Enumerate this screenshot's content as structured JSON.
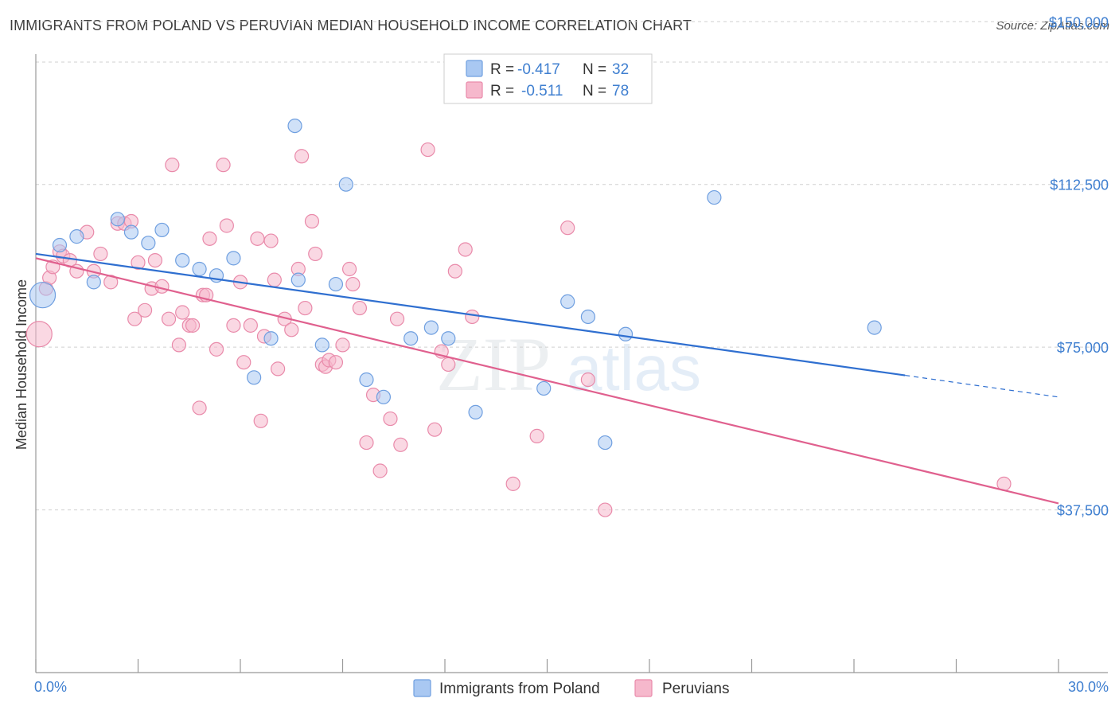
{
  "title": "IMMIGRANTS FROM POLAND VS PERUVIAN MEDIAN HOUSEHOLD INCOME CORRELATION CHART",
  "source": "Source: ZipAtlas.com",
  "watermark": {
    "zip": "ZIP",
    "atlas": "atlas"
  },
  "colors": {
    "blue_fill": "#a9c8f2",
    "blue_stroke": "#6f9fe0",
    "blue_line": "#2f6fd0",
    "pink_fill": "#f6b8cc",
    "pink_stroke": "#e98aaa",
    "pink_line": "#e0608e",
    "tick_text": "#3f7fd0",
    "grid": "#d0d0d0"
  },
  "legend": {
    "rows": [
      {
        "r_label": "R = ",
        "r_value": "-0.417",
        "n_label": "N = ",
        "n_value": "32"
      },
      {
        "r_label": "R = ",
        "r_value": "-0.511",
        "n_label": "N = ",
        "n_value": "78"
      }
    ]
  },
  "chart_data": {
    "type": "scatter",
    "title": "IMMIGRANTS FROM POLAND VS PERUVIAN MEDIAN HOUSEHOLD INCOME CORRELATION CHART",
    "xlabel": "",
    "ylabel": "Median Household Income",
    "xlim": [
      0,
      30
    ],
    "ylim": [
      0,
      155000
    ],
    "x_tick_labels": [
      "0.0%",
      "30.0%"
    ],
    "y_ticks": [
      37500,
      75000,
      112500,
      150000
    ],
    "y_tick_labels": [
      "$37,500",
      "$75,000",
      "$112,500",
      "$150,000"
    ],
    "grid": "horizontal dashed",
    "legend_position": "top-center",
    "series": [
      {
        "name": "Immigrants from Poland",
        "color": "#a9c8f2",
        "trend": {
          "x": [
            0,
            25.5
          ],
          "y": [
            96500,
            68500
          ],
          "dashed_to_x": 30,
          "dashed_to_y": 63500
        },
        "points": [
          [
            0.2,
            87000,
            "large"
          ],
          [
            0.7,
            98500
          ],
          [
            1.2,
            100500
          ],
          [
            1.7,
            90000
          ],
          [
            2.4,
            104500
          ],
          [
            2.8,
            101500
          ],
          [
            3.3,
            99000
          ],
          [
            3.7,
            102000
          ],
          [
            4.3,
            95000
          ],
          [
            4.8,
            93000
          ],
          [
            5.3,
            91500
          ],
          [
            5.8,
            95500
          ],
          [
            6.4,
            68000
          ],
          [
            6.9,
            77000
          ],
          [
            7.6,
            126000
          ],
          [
            7.7,
            90500
          ],
          [
            8.4,
            75500
          ],
          [
            8.8,
            89500
          ],
          [
            9.1,
            112500
          ],
          [
            9.7,
            67500
          ],
          [
            10.2,
            63500
          ],
          [
            11.0,
            77000
          ],
          [
            11.6,
            79500
          ],
          [
            12.1,
            77000
          ],
          [
            12.9,
            60000
          ],
          [
            14.9,
            65500
          ],
          [
            15.6,
            85500
          ],
          [
            16.2,
            82000
          ],
          [
            16.7,
            53000
          ],
          [
            17.3,
            78000
          ],
          [
            19.9,
            109500
          ],
          [
            24.6,
            79500
          ]
        ]
      },
      {
        "name": "Peruvians",
        "color": "#f6b8cc",
        "trend": {
          "x": [
            0,
            30
          ],
          "y": [
            95500,
            39000
          ]
        },
        "points": [
          [
            0.1,
            78000,
            "large"
          ],
          [
            0.3,
            88500
          ],
          [
            0.4,
            91000
          ],
          [
            0.5,
            93500
          ],
          [
            0.7,
            97000
          ],
          [
            0.8,
            96000
          ],
          [
            1.0,
            95000
          ],
          [
            1.2,
            92500
          ],
          [
            1.5,
            101500
          ],
          [
            1.7,
            92500
          ],
          [
            1.9,
            96500
          ],
          [
            2.2,
            90000
          ],
          [
            2.4,
            103500
          ],
          [
            2.6,
            103500
          ],
          [
            2.8,
            104000
          ],
          [
            2.9,
            81500
          ],
          [
            3.0,
            94500
          ],
          [
            3.2,
            83500
          ],
          [
            3.4,
            88500
          ],
          [
            3.5,
            95000
          ],
          [
            3.7,
            89000
          ],
          [
            3.9,
            81500
          ],
          [
            4.0,
            117000
          ],
          [
            4.2,
            75500
          ],
          [
            4.3,
            83000
          ],
          [
            4.5,
            80000
          ],
          [
            4.6,
            80000
          ],
          [
            4.8,
            61000
          ],
          [
            4.9,
            87000
          ],
          [
            5.0,
            87000
          ],
          [
            5.1,
            100000
          ],
          [
            5.3,
            74500
          ],
          [
            5.5,
            117000
          ],
          [
            5.6,
            103000
          ],
          [
            5.8,
            80000
          ],
          [
            6.0,
            90000
          ],
          [
            6.1,
            71500
          ],
          [
            6.3,
            80000
          ],
          [
            6.5,
            100000
          ],
          [
            6.6,
            58000
          ],
          [
            6.7,
            77500
          ],
          [
            6.9,
            99500
          ],
          [
            7.0,
            90500
          ],
          [
            7.1,
            70000
          ],
          [
            7.3,
            81500
          ],
          [
            7.5,
            79000
          ],
          [
            7.7,
            93000
          ],
          [
            7.8,
            119000
          ],
          [
            7.9,
            84000
          ],
          [
            8.1,
            104000
          ],
          [
            8.2,
            96500
          ],
          [
            8.4,
            71000
          ],
          [
            8.5,
            70500
          ],
          [
            8.6,
            72000
          ],
          [
            8.8,
            71500
          ],
          [
            9.0,
            75500
          ],
          [
            9.2,
            93000
          ],
          [
            9.3,
            89500
          ],
          [
            9.5,
            84000
          ],
          [
            9.7,
            53000
          ],
          [
            9.9,
            64000
          ],
          [
            10.1,
            46500
          ],
          [
            10.4,
            58500
          ],
          [
            10.6,
            81500
          ],
          [
            10.7,
            52500
          ],
          [
            11.5,
            120500
          ],
          [
            11.7,
            56000
          ],
          [
            11.9,
            74000
          ],
          [
            12.1,
            71000
          ],
          [
            12.3,
            92500
          ],
          [
            12.6,
            97500
          ],
          [
            12.8,
            82000
          ],
          [
            14.0,
            43500
          ],
          [
            14.7,
            54500
          ],
          [
            15.6,
            102500
          ],
          [
            16.2,
            67500
          ],
          [
            16.7,
            37500
          ],
          [
            28.4,
            43500
          ]
        ]
      }
    ]
  },
  "bottom_legend": {
    "items": [
      {
        "label": "Immigrants from Poland"
      },
      {
        "label": "Peruvians"
      }
    ]
  }
}
